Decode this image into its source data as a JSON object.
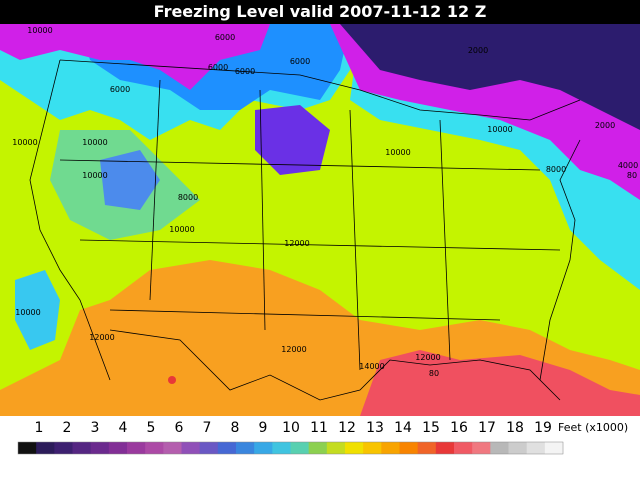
{
  "header": {
    "title": "Freezing Level valid 2007-11-12 12 Z"
  },
  "contour_labels": [
    "10000",
    "6000",
    "6000",
    "6000",
    "6000",
    "2000",
    "2000",
    "10000",
    "10000",
    "10000",
    "10000",
    "6000",
    "8000",
    "10000",
    "10000",
    "12000",
    "10000",
    "12000",
    "12000",
    "12000",
    "14000",
    "8000",
    "4000",
    "80",
    "80"
  ],
  "legend": {
    "labels": [
      "1",
      "2",
      "3",
      "4",
      "5",
      "6",
      "7",
      "8",
      "9",
      "10",
      "11",
      "12",
      "13",
      "14",
      "15",
      "16",
      "17",
      "18",
      "19"
    ],
    "unit": "Feet (x1000)",
    "colors": [
      "#111111",
      "#2c1c5a",
      "#3d2070",
      "#552682",
      "#6b2a8e",
      "#822f96",
      "#9a3a9e",
      "#ac4aa6",
      "#b45eae",
      "#9050b8",
      "#6a58c4",
      "#4668d4",
      "#3a86de",
      "#38a8e6",
      "#40c4e0",
      "#58d0b0",
      "#8cd050",
      "#c4dc20",
      "#f0e000",
      "#f8c400",
      "#f8a400",
      "#f88400",
      "#f06428",
      "#e83838",
      "#f05a64",
      "#f07880",
      "#b8b8b8",
      "#cccccc",
      "#e0e0e0",
      "#f4f4f4"
    ]
  }
}
